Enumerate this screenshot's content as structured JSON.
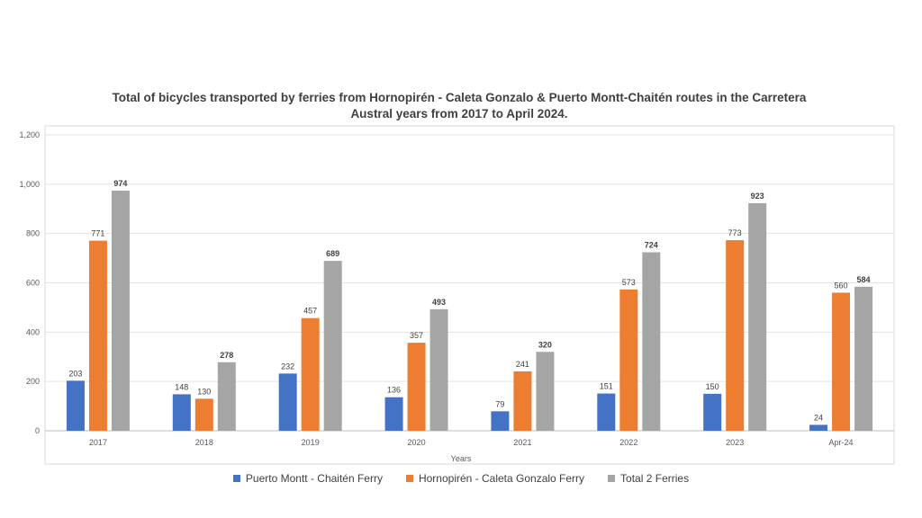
{
  "chart_data": {
    "type": "bar",
    "title_line1": "Total of  bicycles transported by ferries from Hornopirén - Caleta Gonzalo & Puerto Montt-Chaitén routes in the Carretera",
    "title_line2": "Austral years from 2017 to April 2024.",
    "xlabel": "Years",
    "ylabel": "",
    "ylim": [
      0,
      1200
    ],
    "yticks": [
      "0",
      "200",
      "400",
      "600",
      "800",
      "1,000",
      "1,200"
    ],
    "ytick_values": [
      0,
      200,
      400,
      600,
      800,
      1000,
      1200
    ],
    "grid": true,
    "legend_position": "bottom",
    "categories": [
      "2017",
      "2018",
      "2019",
      "2020",
      "2021",
      "2022",
      "2023",
      "Apr-24"
    ],
    "series": [
      {
        "name": "Puerto Montt - Chaitén Ferry",
        "color": "#4472C4",
        "bold_labels": false,
        "values": [
          203,
          148,
          232,
          136,
          79,
          151,
          150,
          24
        ]
      },
      {
        "name": "Hornopirén - Caleta Gonzalo Ferry",
        "color": "#ED7D31",
        "bold_labels": false,
        "values": [
          771,
          130,
          457,
          357,
          241,
          573,
          773,
          560
        ]
      },
      {
        "name": "Total 2 Ferries",
        "color": "#A5A5A5",
        "bold_labels": true,
        "values": [
          974,
          278,
          689,
          493,
          320,
          724,
          923,
          584
        ]
      }
    ]
  }
}
